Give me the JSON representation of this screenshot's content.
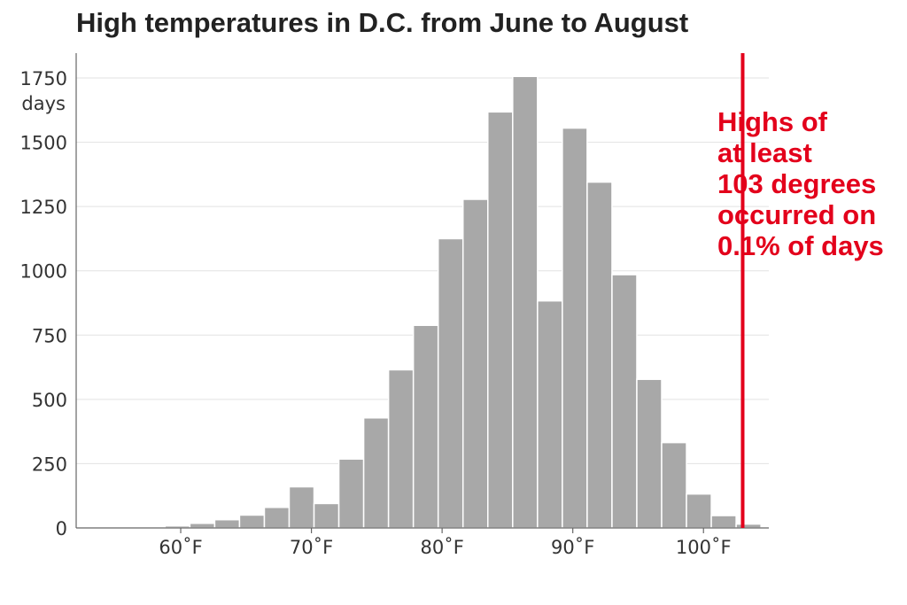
{
  "chart_data": {
    "type": "bar",
    "title": "High temperatures in D.C. from June to August",
    "xlabel": "",
    "ylabel": "days",
    "xlim": [
      52,
      105
    ],
    "ylim": [
      0,
      1750
    ],
    "y_ticks": [
      0,
      250,
      500,
      750,
      1000,
      1250,
      1500,
      1750
    ],
    "x_ticks": [
      60,
      70,
      80,
      90,
      100
    ],
    "x_tick_labels": [
      "60˚F",
      "70˚F",
      "80˚F",
      "90˚F",
      "100˚F"
    ],
    "y_tick_labels": [
      "0",
      "250",
      "500",
      "750",
      "1000",
      "1250",
      "1500",
      "1750"
    ],
    "bin_width": 1.9,
    "bin_starts": [
      58.8,
      60.7,
      62.6,
      64.5,
      66.4,
      68.3,
      70.2,
      72.1,
      74.0,
      75.9,
      77.8,
      79.7,
      81.6,
      83.5,
      85.4,
      87.3,
      89.2,
      91.1,
      93.0,
      94.9,
      96.8,
      98.7,
      100.6,
      102.5
    ],
    "values": [
      8,
      18,
      32,
      50,
      80,
      160,
      95,
      268,
      428,
      615,
      788,
      1125,
      1278,
      1618,
      1756,
      883,
      1555,
      1345,
      985,
      578,
      332,
      132,
      48,
      15
    ],
    "grid": true,
    "bar_color": "#a8a8a8",
    "threshold": {
      "x": 103,
      "color": "#e3001b",
      "annotation_lines": [
        "Highs of",
        "at least",
        "103 degrees",
        "occurred on",
        "0.1% of days"
      ]
    }
  }
}
